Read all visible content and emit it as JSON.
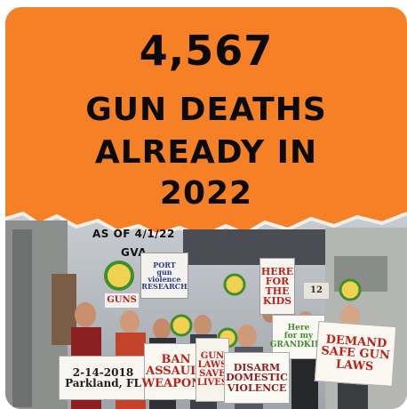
{
  "headline": {
    "count": "4,567",
    "line1": "GUN DEATHS",
    "line2": "ALREADY IN",
    "line3": "2022"
  },
  "caption": {
    "as_of": "AS OF 4/1/22",
    "source": "GVA"
  },
  "signs": {
    "gun_violence_research": "PORT\ngun\nviolence\nRESEARCH",
    "here_for_the_kids": "HERE\nFOR\nTHE\nKIDS",
    "here_for_my_grandkids": "Here\nfor my\nGRANDKIDS",
    "demand_safe_gun_laws": "DEMAND\nSAFE GUN\nLAWS",
    "parkland": "2-14-2018\nParkland, FL",
    "ban_assault_weapons": "BAN\nASSAULT\nWEAPONS",
    "gun_laws_save_lives": "GUN\nLAWS\nSAVE\nLIVES",
    "disarm_domestic_violence": "DISARM\nDOMESTIC\nVIOLENCE",
    "guns_fragment": "GUNS",
    "number_12": "12"
  },
  "colors": {
    "brand_orange": "#f58025",
    "text_black": "#0b0b0b",
    "sign_red": "#b8231c",
    "marker_green": "#3f8f2e"
  }
}
